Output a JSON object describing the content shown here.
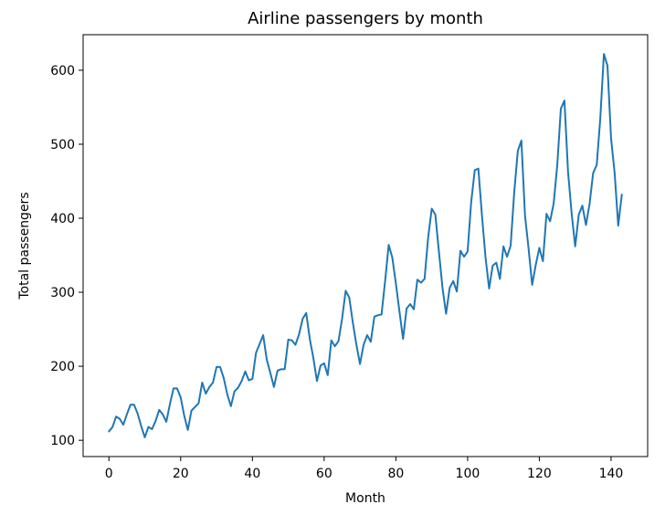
{
  "chart_data": {
    "type": "line",
    "title": "Airline passengers by month",
    "xlabel": "Month",
    "ylabel": "Total passengers",
    "xlim": [
      -7.2,
      150.2
    ],
    "ylim": [
      78,
      648
    ],
    "xticks": [
      0,
      20,
      40,
      60,
      80,
      100,
      120,
      140
    ],
    "yticks": [
      100,
      200,
      300,
      400,
      500,
      600
    ],
    "grid": false,
    "line_color": "#1f77b4",
    "series": [
      {
        "values": [
          112,
          118,
          132,
          129,
          121,
          135,
          148,
          148,
          136,
          119,
          104,
          118,
          115,
          126,
          141,
          135,
          125,
          149,
          170,
          170,
          158,
          133,
          114,
          140,
          145,
          150,
          178,
          163,
          172,
          178,
          199,
          199,
          184,
          162,
          146,
          166,
          171,
          180,
          193,
          181,
          183,
          218,
          230,
          242,
          209,
          191,
          172,
          194,
          196,
          196,
          236,
          235,
          229,
          243,
          264,
          272,
          237,
          211,
          180,
          201,
          204,
          188,
          235,
          227,
          234,
          264,
          302,
          293,
          259,
          229,
          203,
          229,
          242,
          233,
          267,
          269,
          270,
          315,
          364,
          347,
          312,
          274,
          237,
          278,
          284,
          277,
          317,
          313,
          318,
          374,
          413,
          405,
          355,
          306,
          271,
          306,
          315,
          301,
          356,
          348,
          355,
          422,
          465,
          467,
          404,
          347,
          305,
          336,
          340,
          318,
          362,
          348,
          363,
          435,
          491,
          505,
          404,
          359,
          310,
          337,
          360,
          342,
          406,
          396,
          420,
          472,
          548,
          559,
          463,
          407,
          362,
          405,
          417,
          391,
          419,
          461,
          472,
          535,
          622,
          606,
          508,
          461,
          390,
          432
        ]
      }
    ]
  }
}
